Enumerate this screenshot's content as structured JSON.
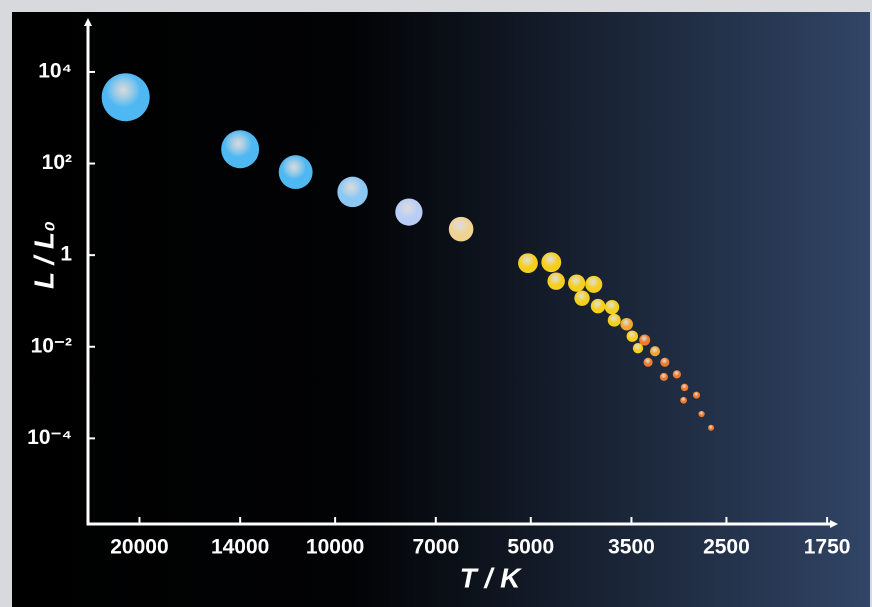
{
  "chart_data": {
    "type": "scatter",
    "x_label": "T / K",
    "y_label": "L / L₀",
    "x": [
      21000,
      14000,
      11500,
      9400,
      7700,
      6400,
      5050,
      4650,
      4570,
      4250,
      4000,
      4170,
      3940,
      3750,
      3720,
      3560,
      3490,
      3340,
      3420,
      3220,
      3300,
      3110,
      2980,
      3120,
      2900,
      2780,
      2910,
      2730,
      2640
    ],
    "values": [
      2800,
      205,
      65,
      24,
      8.7,
      3.7,
      0.67,
      0.7,
      0.27,
      0.245,
      0.23,
      0.115,
      0.077,
      0.073,
      0.038,
      0.031,
      0.017,
      0.014,
      0.0093,
      0.008,
      0.0046,
      0.0046,
      0.0025,
      0.0022,
      0.0013,
      0.00088,
      0.00068,
      0.00034,
      0.00017
    ],
    "colors": [
      "#4fb8f2",
      "#4fb8f2",
      "#4fb8f2",
      "#8cc8f4",
      "#b9cdf5",
      "#f0d392",
      "#f6cf1e",
      "#f6cf1e",
      "#f6cf1e",
      "#f6cf1e",
      "#f6cf1e",
      "#f6cf1e",
      "#f6cf1e",
      "#f6cf1e",
      "#f6cf1e",
      "#f2a530",
      "#f6cf1e",
      "#ee7a2a",
      "#f6cf1e",
      "#f2a530",
      "#ee7a2a",
      "#ee7a2a",
      "#ee7a2a",
      "#ee7a2a",
      "#ee7a2a",
      "#ee7a2a",
      "#ee7a2a",
      "#ee7a2a",
      "#ee7a2a"
    ],
    "xlim": [
      24000,
      1720
    ],
    "x_log": true,
    "xticks": [
      20000,
      14000,
      10000,
      7000,
      5000,
      3500,
      2500,
      1750
    ],
    "ylim": [
      1.35e-06,
      91000
    ],
    "y_log": true,
    "yticks": [
      {
        "value": 10000,
        "label": "10⁴"
      },
      {
        "value": 100,
        "label": "10²"
      },
      1,
      {
        "value": 0.01,
        "label": "10⁻²"
      },
      {
        "value": 0.0001,
        "label": "10⁻⁴"
      }
    ]
  }
}
